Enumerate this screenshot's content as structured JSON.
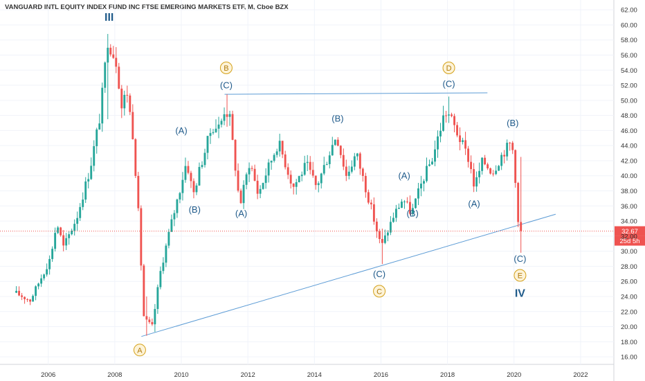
{
  "chart_data": {
    "type": "candlestick",
    "title": "VANGUARD INTL EQUITY INDEX FUND INC FTSE EMERGING MARKETS ETF, M, Cboe BZX",
    "y_axis": {
      "side": "right",
      "range": [
        15.0,
        63.3
      ],
      "tick_labels": [
        "16.00",
        "18.00",
        "20.00",
        "22.00",
        "24.00",
        "26.00",
        "28.00",
        "30.00",
        "32.00",
        "34.00",
        "36.00",
        "38.00",
        "40.00",
        "42.00",
        "44.00",
        "46.00",
        "48.00",
        "50.00",
        "52.00",
        "54.00",
        "56.00",
        "58.00",
        "60.00",
        "62.00"
      ]
    },
    "x_axis": {
      "range": [
        2004.55,
        2023.0
      ],
      "ticks": [
        2006,
        2008,
        2010,
        2012,
        2014,
        2016,
        2018,
        2020,
        2022
      ],
      "tick_labels": [
        "2006",
        "2008",
        "2010",
        "2012",
        "2014",
        "2016",
        "2018",
        "2020",
        "2022"
      ]
    },
    "colors": {
      "up": "#26a69a",
      "down": "#ef5350",
      "trendline": "#5b9bd5",
      "wave_text": "#1f5a8a",
      "circle": "#d4a017"
    },
    "last_price": {
      "value": 32.67,
      "label": "32.67",
      "countdown": "25d 5h"
    },
    "price_anchors": [
      {
        "t": 2005.04,
        "v": 24.5
      },
      {
        "t": 2005.5,
        "v": 23.5
      },
      {
        "t": 2006.1,
        "v": 29.0
      },
      {
        "t": 2006.3,
        "v": 33.8
      },
      {
        "t": 2006.5,
        "v": 30.5
      },
      {
        "t": 2006.9,
        "v": 34.5
      },
      {
        "t": 2007.3,
        "v": 41.0
      },
      {
        "t": 2007.6,
        "v": 48.0
      },
      {
        "t": 2007.83,
        "v": 58.0
      },
      {
        "t": 2008.1,
        "v": 55.0
      },
      {
        "t": 2008.25,
        "v": 49.0
      },
      {
        "t": 2008.4,
        "v": 51.5
      },
      {
        "t": 2008.6,
        "v": 45.0
      },
      {
        "t": 2008.75,
        "v": 35.0
      },
      {
        "t": 2008.92,
        "v": 21.0
      },
      {
        "t": 2009.17,
        "v": 20.0
      },
      {
        "t": 2009.4,
        "v": 27.0
      },
      {
        "t": 2009.7,
        "v": 33.0
      },
      {
        "t": 2009.96,
        "v": 37.5
      },
      {
        "t": 2010.2,
        "v": 42.0
      },
      {
        "t": 2010.4,
        "v": 37.5
      },
      {
        "t": 2010.6,
        "v": 41.0
      },
      {
        "t": 2010.96,
        "v": 46.5
      },
      {
        "t": 2011.2,
        "v": 46.5
      },
      {
        "t": 2011.35,
        "v": 49.0
      },
      {
        "t": 2011.5,
        "v": 47.5
      },
      {
        "t": 2011.8,
        "v": 36.0
      },
      {
        "t": 2012.1,
        "v": 42.0
      },
      {
        "t": 2012.35,
        "v": 37.5
      },
      {
        "t": 2012.6,
        "v": 40.5
      },
      {
        "t": 2012.96,
        "v": 44.5
      },
      {
        "t": 2013.4,
        "v": 38.5
      },
      {
        "t": 2013.8,
        "v": 41.5
      },
      {
        "t": 2014.1,
        "v": 38.5
      },
      {
        "t": 2014.7,
        "v": 45.5
      },
      {
        "t": 2015.0,
        "v": 40.0
      },
      {
        "t": 2015.3,
        "v": 43.0
      },
      {
        "t": 2015.7,
        "v": 36.5
      },
      {
        "t": 2015.9,
        "v": 33.0
      },
      {
        "t": 2016.05,
        "v": 30.5
      },
      {
        "t": 2016.4,
        "v": 34.5
      },
      {
        "t": 2016.7,
        "v": 37.0
      },
      {
        "t": 2016.96,
        "v": 35.0
      },
      {
        "t": 2017.3,
        "v": 39.5
      },
      {
        "t": 2017.6,
        "v": 42.5
      },
      {
        "t": 2017.96,
        "v": 48.5
      },
      {
        "t": 2018.1,
        "v": 48.0
      },
      {
        "t": 2018.4,
        "v": 45.0
      },
      {
        "t": 2018.7,
        "v": 42.0
      },
      {
        "t": 2018.85,
        "v": 38.5
      },
      {
        "t": 2019.1,
        "v": 42.0
      },
      {
        "t": 2019.4,
        "v": 40.5
      },
      {
        "t": 2019.7,
        "v": 43.0
      },
      {
        "t": 2019.96,
        "v": 44.5
      },
      {
        "t": 2020.05,
        "v": 42.0
      },
      {
        "t": 2020.18,
        "v": 32.67
      }
    ],
    "pinned_bars": [
      {
        "t": 2007.83,
        "h": 58.8,
        "l": 47.5
      },
      {
        "t": 2008.92,
        "h": 24.0,
        "l": 18.8
      },
      {
        "t": 2009.17,
        "h": 23.0,
        "l": 19.3
      },
      {
        "t": 2011.35,
        "h": 50.8,
        "l": 46.5
      },
      {
        "t": 2016.05,
        "h": 33.0,
        "l": 28.3
      },
      {
        "t": 2018.04,
        "h": 50.5,
        "l": 47.0
      },
      {
        "t": 2020.18,
        "h": 42.5,
        "l": 29.8
      }
    ],
    "trendlines": [
      {
        "from": {
          "t": 2008.8,
          "v": 18.7
        },
        "to": {
          "t": 2021.25,
          "v": 34.9
        }
      },
      {
        "from": {
          "t": 2011.3,
          "v": 50.8
        },
        "to": {
          "t": 2019.2,
          "v": 51.0
        }
      }
    ],
    "annotations": [
      {
        "text": "III",
        "t": 2007.83,
        "v": 61.0,
        "style": "big"
      },
      {
        "text": "B",
        "t": 2011.35,
        "v": 54.3,
        "style": "circle"
      },
      {
        "text": "(C)",
        "t": 2011.35,
        "v": 52.0,
        "style": "wave"
      },
      {
        "text": "(A)",
        "t": 2010.0,
        "v": 46.0,
        "style": "wave"
      },
      {
        "text": "(B)",
        "t": 2010.4,
        "v": 35.5,
        "style": "wave"
      },
      {
        "text": "(A)",
        "t": 2011.8,
        "v": 35.0,
        "style": "wave"
      },
      {
        "text": "(B)",
        "t": 2014.7,
        "v": 47.6,
        "style": "wave"
      },
      {
        "text": "(C)",
        "t": 2015.95,
        "v": 27.0,
        "style": "wave"
      },
      {
        "text": "C",
        "t": 2015.95,
        "v": 24.7,
        "style": "circle"
      },
      {
        "text": "(A)",
        "t": 2016.7,
        "v": 40.0,
        "style": "wave"
      },
      {
        "text": "(B)",
        "t": 2016.95,
        "v": 35.0,
        "style": "wave"
      },
      {
        "text": "D",
        "t": 2018.04,
        "v": 54.3,
        "style": "circle"
      },
      {
        "text": "(C)",
        "t": 2018.04,
        "v": 52.2,
        "style": "wave"
      },
      {
        "text": "(A)",
        "t": 2018.8,
        "v": 36.3,
        "style": "wave"
      },
      {
        "text": "(B)",
        "t": 2019.96,
        "v": 47.0,
        "style": "wave"
      },
      {
        "text": "(C)",
        "t": 2020.18,
        "v": 29.0,
        "style": "wave"
      },
      {
        "text": "E",
        "t": 2020.18,
        "v": 26.8,
        "style": "circle"
      },
      {
        "text": "IV",
        "t": 2020.18,
        "v": 24.4,
        "style": "big"
      },
      {
        "text": "A",
        "t": 2008.75,
        "v": 16.9,
        "style": "circle"
      }
    ]
  }
}
